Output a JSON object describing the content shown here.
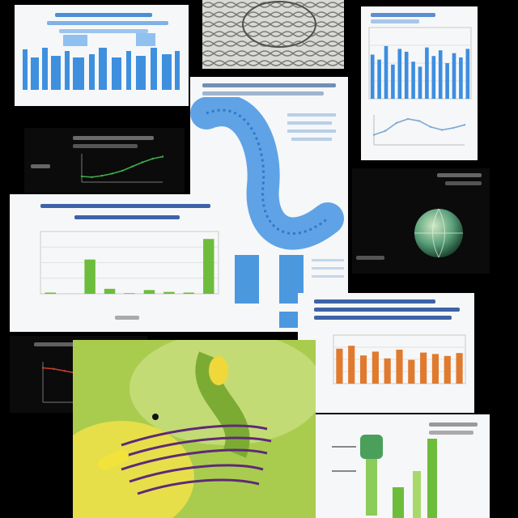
{
  "colors": {
    "background": "#000000",
    "accent_blue": "#3d8ee0",
    "accent_green": "#6cbd3c",
    "accent_orange": "#e07a2e",
    "leaf_green": "#a9cc4e",
    "flower_yellow": "#f2e33a",
    "dna_purple": "#5e2a78"
  },
  "tiles": [
    {
      "name": "blue-word-poster",
      "kind": "image"
    },
    {
      "name": "textured-photo",
      "kind": "image"
    },
    {
      "name": "blue-bar-chart-card",
      "kind": "chart"
    },
    {
      "name": "dark-line-chart-card",
      "kind": "chart"
    },
    {
      "name": "blue-helix-document",
      "kind": "document"
    },
    {
      "name": "dark-sphere-card",
      "kind": "image"
    },
    {
      "name": "green-bar-chart-card",
      "kind": "chart"
    },
    {
      "name": "dark-declining-line-card",
      "kind": "chart"
    },
    {
      "name": "orange-bar-chart-card",
      "kind": "chart"
    },
    {
      "name": "green-plant-dna-image",
      "kind": "image"
    },
    {
      "name": "green-test-tube-card",
      "kind": "image"
    }
  ],
  "chart_data": [
    {
      "type": "bar",
      "series": [
        {
          "values": [
            62,
            55,
            74,
            48,
            70,
            66,
            52,
            45,
            72,
            60,
            68,
            50,
            64,
            58,
            70
          ]
        }
      ],
      "ylim": [
        0,
        100
      ]
    },
    {
      "type": "bar",
      "series": [
        {
          "values": [
            2,
            0,
            55,
            8,
            1,
            6,
            3,
            2,
            88
          ]
        }
      ],
      "ylim": [
        0,
        100
      ]
    },
    {
      "type": "bar",
      "series": [
        {
          "values": [
            72,
            78,
            58,
            66,
            52,
            70,
            49,
            64,
            61,
            57,
            63
          ]
        }
      ],
      "ylim": [
        0,
        100
      ]
    },
    {
      "type": "line",
      "series": [
        {
          "values": [
            8,
            7,
            9,
            12,
            16,
            22,
            28,
            33,
            36
          ]
        }
      ],
      "ylim": [
        0,
        40
      ]
    },
    {
      "type": "line",
      "series": [
        {
          "values": [
            34,
            33,
            31,
            29,
            26,
            22,
            17,
            12,
            8,
            5
          ]
        }
      ],
      "ylim": [
        0,
        40
      ]
    }
  ]
}
